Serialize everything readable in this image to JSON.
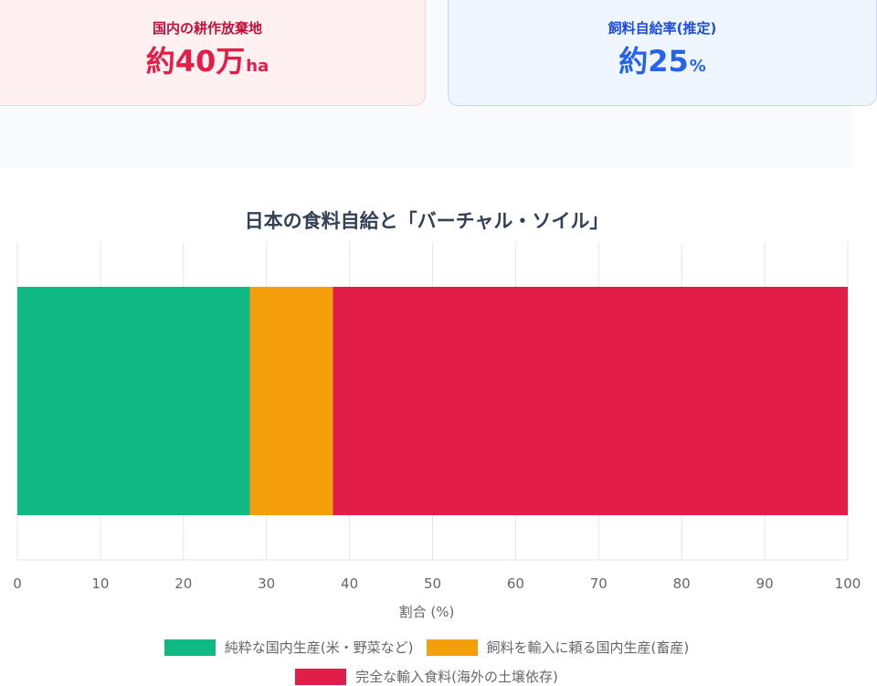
{
  "stats": [
    {
      "label": "国内の耕作放棄地",
      "value": "約40万",
      "unit": "ha",
      "color": "#e11d48"
    },
    {
      "label": "飼料自給率(推定)",
      "value": "約25",
      "unit": "%",
      "color": "#2563eb"
    }
  ],
  "chart_data": {
    "type": "bar",
    "orientation": "horizontal-stacked",
    "title": "日本の食料自給と「バーチャル・ソイル」",
    "xlabel": "割合 (%)",
    "ylabel": "",
    "xlim": [
      0,
      100
    ],
    "x_ticks": [
      "0",
      "10",
      "20",
      "30",
      "40",
      "50",
      "60",
      "70",
      "80",
      "90",
      "100"
    ],
    "grid": true,
    "legend_position": "bottom",
    "series": [
      {
        "name": "純粋な国内生産(米・野菜など)",
        "values": [
          28
        ],
        "color": "#10b981"
      },
      {
        "name": "飼料を輸入に頼る国内生産(畜産)",
        "values": [
          10
        ],
        "color": "#f59e0b"
      },
      {
        "name": "完全な輸入食料(海外の土壌依存)",
        "values": [
          62
        ],
        "color": "#e11d48"
      }
    ]
  }
}
